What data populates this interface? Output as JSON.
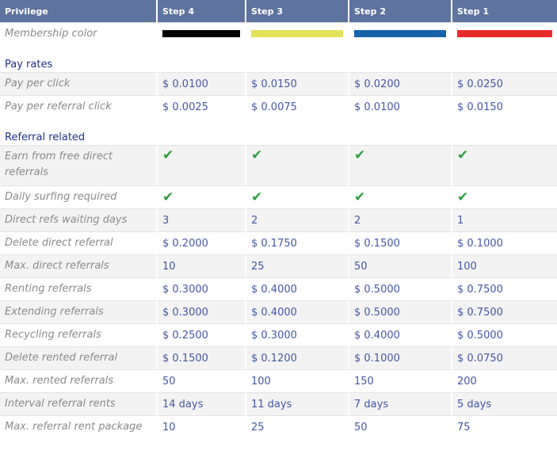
{
  "header": {
    "privilege": "Privilege",
    "steps": [
      "Step 4",
      "Step 3",
      "Step 2",
      "Step 1"
    ]
  },
  "membership": {
    "label": "Membership color",
    "colors": [
      "#000000",
      "#e3e35a",
      "#1663ac",
      "#ea2a2a"
    ]
  },
  "sections": [
    {
      "title": "Pay rates",
      "rows": [
        {
          "label": "Pay per click",
          "values": [
            "$ 0.0100",
            "$ 0.0150",
            "$ 0.0200",
            "$ 0.0250"
          ]
        },
        {
          "label": "Pay per referral click",
          "values": [
            "$ 0.0025",
            "$ 0.0075",
            "$ 0.0100",
            "$ 0.0150"
          ]
        }
      ]
    },
    {
      "title": "Referral related",
      "rows": [
        {
          "label": "Earn from free direct referrals",
          "check": true
        },
        {
          "label": "Daily surfing required",
          "check": true
        },
        {
          "label": "Direct refs waiting days",
          "values": [
            "3",
            "2",
            "2",
            "1"
          ]
        },
        {
          "label": "Delete direct referral",
          "values": [
            "$ 0.2000",
            "$ 0.1750",
            "$ 0.1500",
            "$ 0.1000"
          ]
        },
        {
          "label": "Max. direct referrals",
          "values": [
            "10",
            "25",
            "50",
            "100"
          ]
        },
        {
          "label": "Renting referrals",
          "values": [
            "$ 0.3000",
            "$ 0.4000",
            "$ 0.5000",
            "$ 0.7500"
          ]
        },
        {
          "label": "Extending referrals",
          "values": [
            "$ 0.3000",
            "$ 0.4000",
            "$ 0.5000",
            "$ 0.7500"
          ]
        },
        {
          "label": "Recycling referrals",
          "values": [
            "$ 0.2500",
            "$ 0.3000",
            "$ 0.4000",
            "$ 0.5000"
          ]
        },
        {
          "label": "Delete rented referral",
          "values": [
            "$ 0.1500",
            "$ 0.1200",
            "$ 0.1000",
            "$ 0.0750"
          ]
        },
        {
          "label": "Max. rented referrals",
          "values": [
            "50",
            "100",
            "150",
            "200"
          ]
        },
        {
          "label": "Interval referral rents",
          "values": [
            "14 days",
            "11 days",
            "7 days",
            "5 days"
          ]
        },
        {
          "label": "Max. referral rent package",
          "values": [
            "10",
            "25",
            "50",
            "75"
          ]
        }
      ]
    }
  ],
  "check_glyph": "✔",
  "check_icon": "checkmark-icon"
}
